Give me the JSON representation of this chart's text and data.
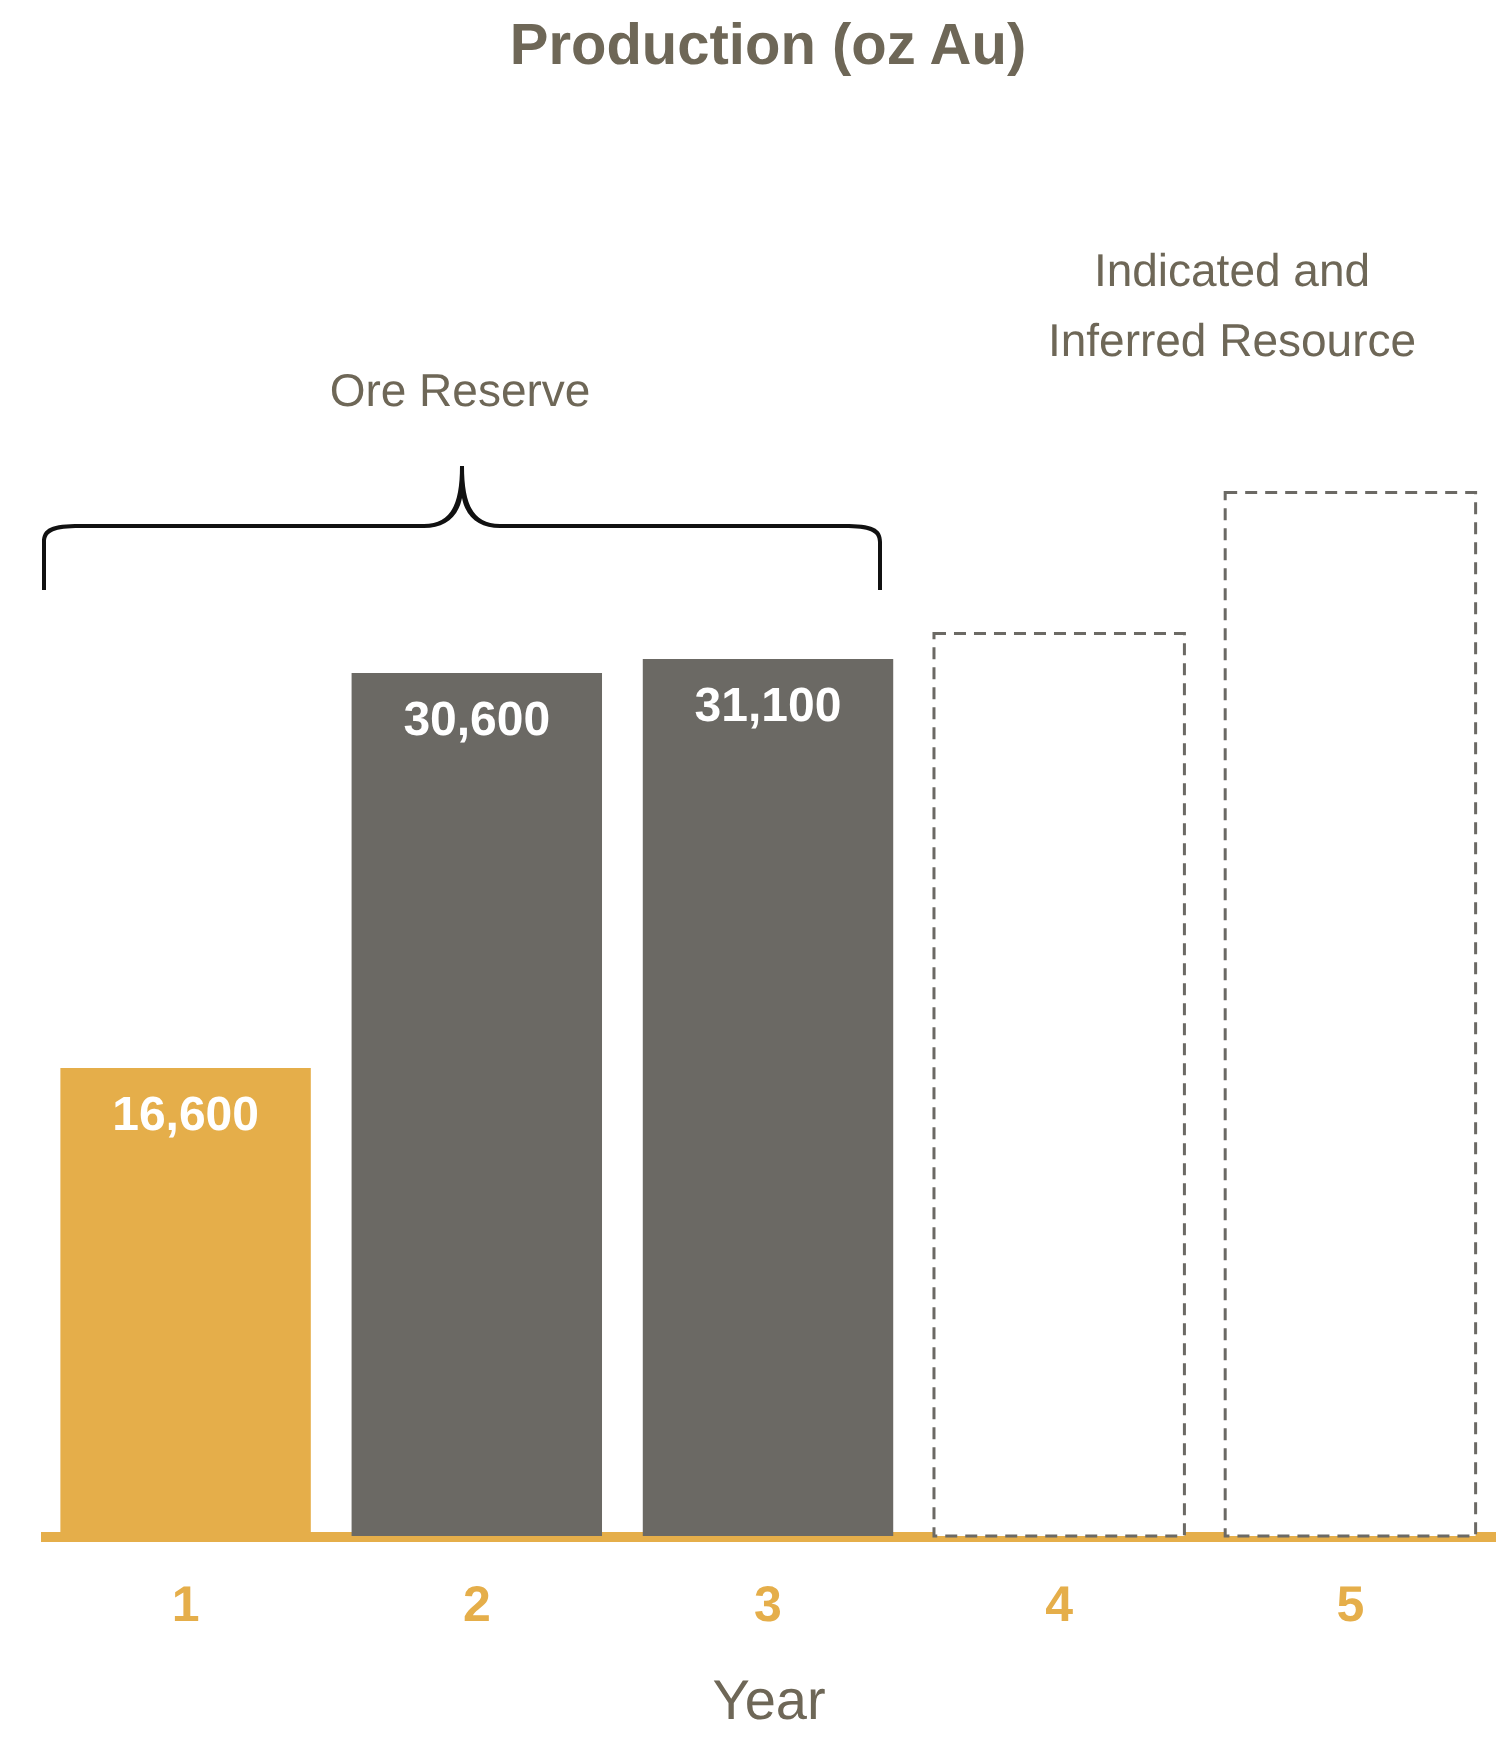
{
  "chart_data": {
    "type": "bar",
    "title": "Production (oz Au)",
    "xlabel": "Year",
    "categories": [
      "1",
      "2",
      "3",
      "4",
      "5"
    ],
    "series": [
      {
        "values": [
          16600,
          30600,
          31100,
          null,
          null
        ],
        "colors": [
          "#e5ae4a",
          "#6b6964",
          "#6b6964",
          null,
          null
        ],
        "value_labels": [
          "16,600",
          "30,600",
          "31,100",
          null,
          null
        ]
      },
      {
        "values": [
          null,
          null,
          null,
          32000,
          37000
        ],
        "color": "#ffffff",
        "line_style": "dashed"
      }
    ],
    "tick_labels": "x",
    "annotations": [
      "Ore Reserve",
      "Indicated and Inferred Resource"
    ]
  }
}
